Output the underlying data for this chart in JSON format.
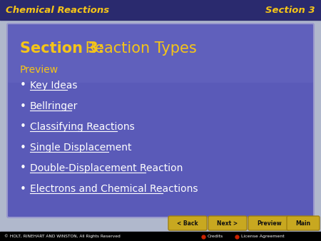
{
  "header_bg": "#2a2a6e",
  "header_text_left": "Chemical Reactions",
  "header_text_right": "Section 3",
  "header_text_color": "#f5c518",
  "slide_bg": "#b0b8cc",
  "title_bold_part": "Section 3:",
  "title_regular_part": " Reaction Types",
  "title_color": "#f5c518",
  "preview_label": "Preview",
  "preview_color": "#f5c518",
  "bullet_items": [
    "Key Ideas",
    "Bellringer",
    "Classifying Reactions",
    "Single Displacement",
    "Double-Displacement Reaction",
    "Electrons and Chemical Reactions"
  ],
  "bullet_color": "#ffffff",
  "footer_bg": "#000000",
  "footer_text": "© HOLT, RINEHART AND WINSTON, All Rights Reserved",
  "footer_text_color": "#ffffff",
  "footer_credits": "Credits",
  "footer_license": "License Agreement",
  "footer_link_color": "#ffffff",
  "nav_button_color": "#c8a820",
  "nav_buttons": [
    "< Back",
    "Next >",
    "Preview",
    "Main"
  ],
  "nav_button_text_color": "#111111",
  "inner_box_bg": "#5a5ab8",
  "inner_box_border": "#9999cc"
}
